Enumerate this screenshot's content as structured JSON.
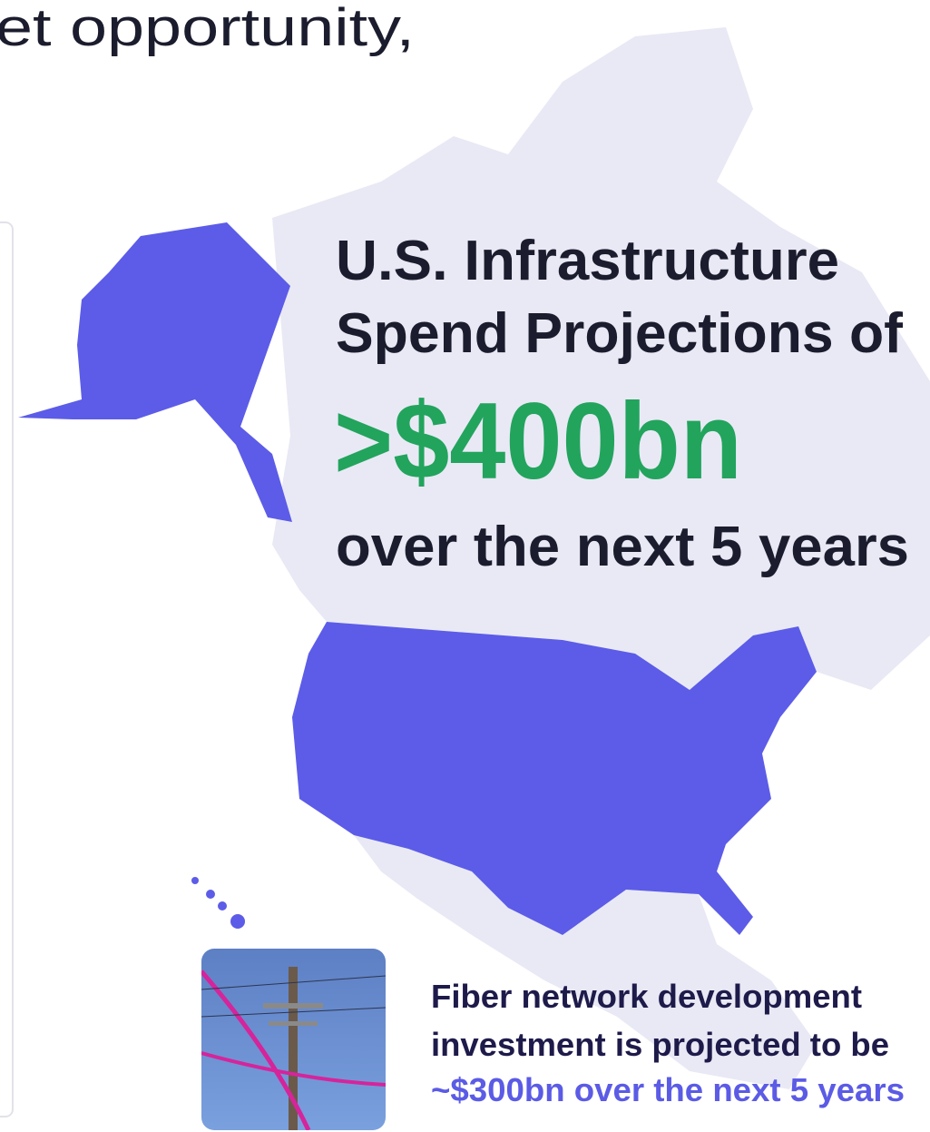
{
  "header": {
    "title_fragment": "et opportunity,"
  },
  "headline": {
    "line1": "U.S. Infrastructure",
    "line2": "Spend Projections of",
    "amount": ">$400bn",
    "line3": "over the next 5 years"
  },
  "fiber": {
    "line1": "Fiber network development",
    "line2": "investment is projected to be",
    "highlight": "~$300bn over the next 5 years"
  }
}
